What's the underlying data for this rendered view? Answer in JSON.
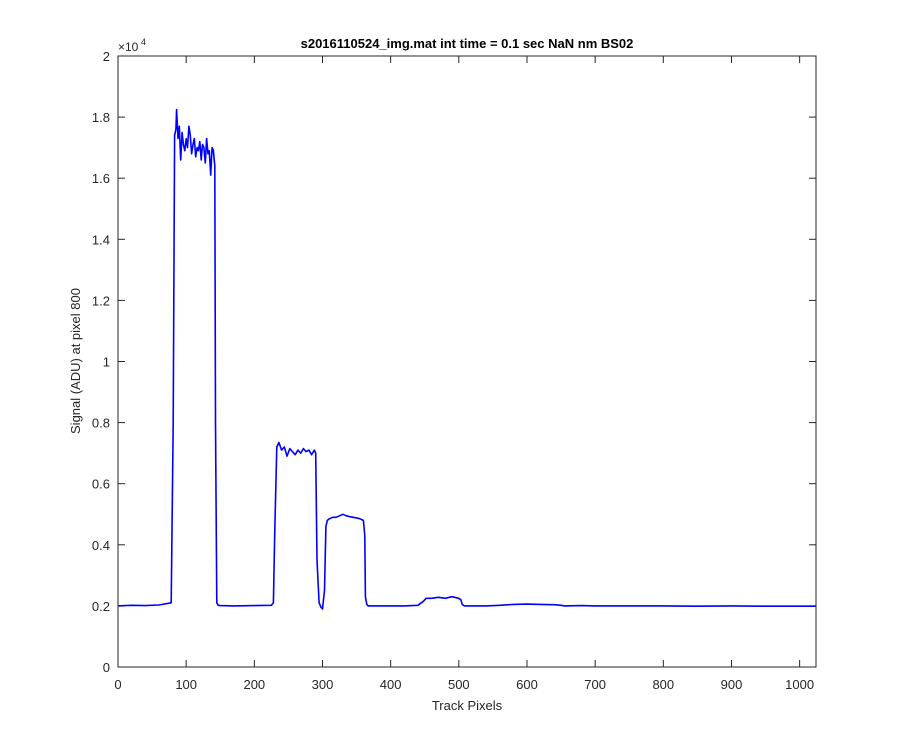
{
  "chart_data": {
    "type": "line",
    "title": "s2016110524_img.mat int time = 0.1 sec  NaN nm BS02",
    "xlabel": "Track Pixels",
    "ylabel": "Signal (ADU) at pixel 800",
    "xlim": [
      0,
      1024
    ],
    "ylim": [
      0,
      20000
    ],
    "y_exponent_label": "×10",
    "y_exponent_power": "4",
    "xticks": [
      "0",
      "100",
      "200",
      "300",
      "400",
      "500",
      "600",
      "700",
      "800",
      "900",
      "1000"
    ],
    "yticks": [
      "0",
      "0.2",
      "0.4",
      "0.6",
      "0.8",
      "1",
      "1.2",
      "1.4",
      "1.6",
      "1.8",
      "2"
    ],
    "grid": false,
    "series": [
      {
        "color": "#0000ff",
        "x": [
          0,
          20,
          40,
          60,
          78,
          81,
          83,
          85,
          86,
          88,
          90,
          92,
          94,
          96,
          98,
          100,
          102,
          104,
          106,
          108,
          110,
          112,
          114,
          116,
          118,
          120,
          122,
          124,
          126,
          128,
          130,
          132,
          134,
          136,
          138,
          140,
          142,
          143,
          145,
          147,
          150,
          170,
          200,
          225,
          228,
          230,
          233,
          236,
          240,
          244,
          248,
          252,
          256,
          260,
          264,
          268,
          272,
          276,
          280,
          284,
          288,
          290,
          292,
          295,
          298,
          300,
          303,
          305,
          307,
          310,
          315,
          320,
          325,
          330,
          335,
          340,
          345,
          350,
          355,
          360,
          362,
          363,
          365,
          367,
          380,
          400,
          420,
          440,
          445,
          448,
          452,
          460,
          470,
          480,
          490,
          500,
          503,
          505,
          508,
          520,
          540,
          560,
          580,
          600,
          620,
          640,
          650,
          655,
          680,
          700,
          750,
          800,
          850,
          900,
          950,
          1000,
          1024
        ],
        "y": [
          2000,
          2020,
          2010,
          2030,
          2100,
          8000,
          17400,
          17600,
          18250,
          17300,
          17700,
          16600,
          17500,
          17100,
          16900,
          17300,
          17000,
          17700,
          17400,
          16800,
          17100,
          17300,
          16700,
          17000,
          16900,
          17200,
          16600,
          17100,
          17000,
          16500,
          17300,
          16800,
          16900,
          16100,
          17000,
          16900,
          16400,
          8000,
          2100,
          2020,
          2010,
          2000,
          2010,
          2020,
          2100,
          4500,
          7200,
          7350,
          7100,
          7200,
          6900,
          7150,
          7050,
          6950,
          7100,
          7000,
          7150,
          7050,
          7100,
          6950,
          7100,
          7000,
          3500,
          2100,
          1950,
          1900,
          2500,
          4600,
          4800,
          4850,
          4900,
          4900,
          4950,
          5000,
          4950,
          4920,
          4900,
          4880,
          4850,
          4800,
          4300,
          2300,
          2050,
          2000,
          2000,
          2000,
          2000,
          2020,
          2100,
          2150,
          2250,
          2250,
          2280,
          2250,
          2300,
          2250,
          2200,
          2050,
          2000,
          2000,
          2000,
          2020,
          2050,
          2060,
          2050,
          2040,
          2020,
          2000,
          2010,
          2000,
          2000,
          2000,
          1990,
          2000,
          1990,
          1990,
          1990
        ]
      }
    ]
  }
}
